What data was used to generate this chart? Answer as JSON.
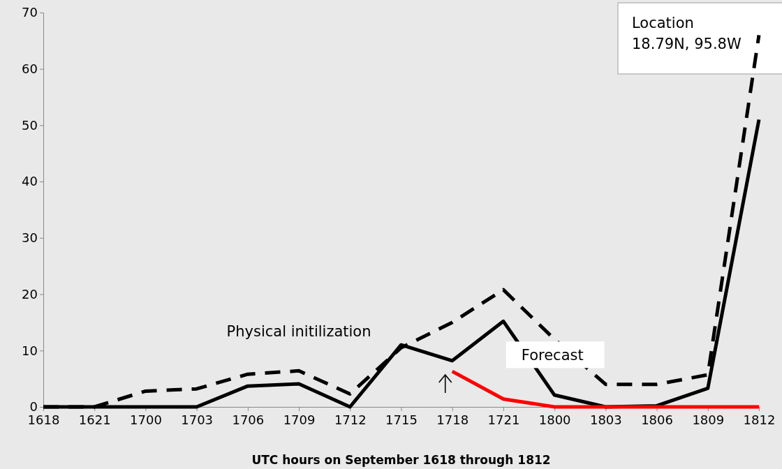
{
  "chart_data": {
    "type": "line",
    "xlabel": "UTC hours on September 1618 through 1812",
    "categories": [
      "1618",
      "1621",
      "1700",
      "1703",
      "1706",
      "1709",
      "1712",
      "1715",
      "1718",
      "1721",
      "1800",
      "1803",
      "1806",
      "1809",
      "1812"
    ],
    "series": [
      {
        "color": "#000000",
        "line_style": "dashed",
        "values": [
          0,
          0,
          2.8,
          3.2,
          5.8,
          6.4,
          2.3,
          10.5,
          15,
          20.8,
          12,
          4,
          4,
          5.7,
          66
        ]
      },
      {
        "color": "#000000",
        "line_style": "solid",
        "values": [
          0,
          0,
          0,
          0,
          3.7,
          4.1,
          0,
          11,
          8.2,
          15.2,
          2.1,
          0,
          0.2,
          3.3,
          51
        ]
      },
      {
        "color": "#ff0000",
        "line_style": "solid",
        "values": [
          null,
          null,
          null,
          null,
          null,
          null,
          null,
          null,
          6.3,
          1.4,
          0,
          0,
          0,
          0,
          0
        ]
      }
    ],
    "ylim": [
      0,
      70
    ],
    "yticks": [
      0,
      10,
      20,
      30,
      40,
      50,
      60,
      70
    ],
    "grid": false,
    "marker": "none",
    "annotations": [
      "Physical initilization",
      "Forecast",
      "Location\n18.79N, 95.8W"
    ]
  }
}
